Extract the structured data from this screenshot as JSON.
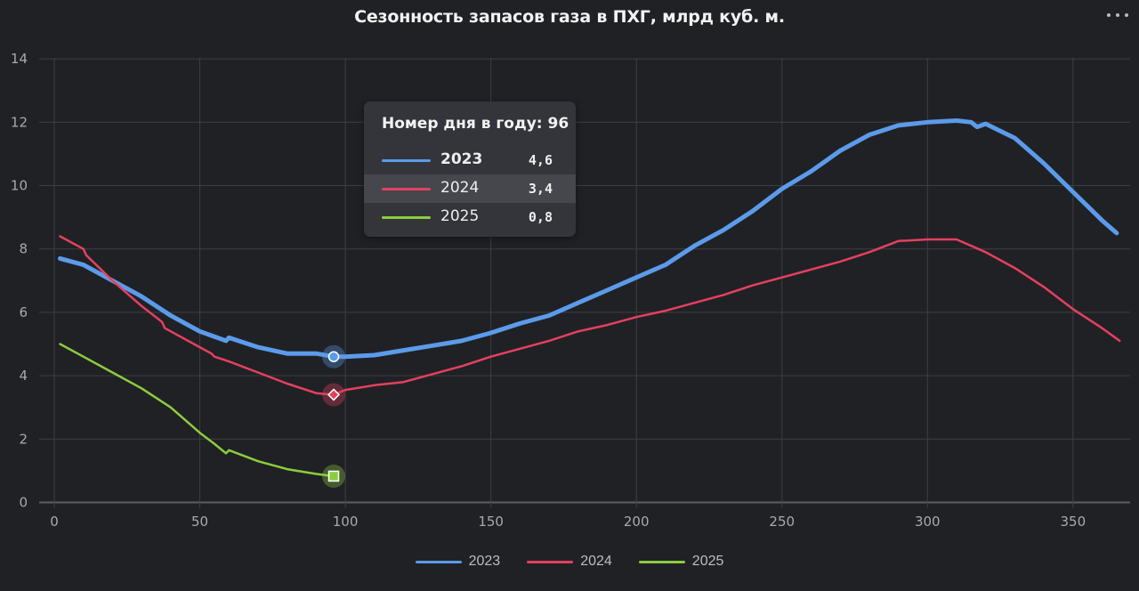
{
  "header": {
    "title": "Сезонность запасов газа в ПХГ, млрд куб. м.",
    "menu_icon": "more-horizontal-icon"
  },
  "tooltip": {
    "heading": "Номер дня в году: 96",
    "rows": [
      {
        "name": "2023",
        "value": "4,6",
        "color": "#5b9bea",
        "bold": true
      },
      {
        "name": "2024",
        "value": "3,4",
        "color": "#e5405f",
        "bold": false
      },
      {
        "name": "2025",
        "value": "0,8",
        "color": "#8ccd3e",
        "bold": false
      }
    ]
  },
  "legend": [
    {
      "label": "2023",
      "color": "#5b9bea"
    },
    {
      "label": "2024",
      "color": "#e5405f"
    },
    {
      "label": "2025",
      "color": "#8ccd3e"
    }
  ],
  "chart_data": {
    "type": "line",
    "title": "Сезонность запасов газа в ПХГ, млрд куб. м.",
    "xlabel": "",
    "ylabel": "",
    "xlim": [
      0,
      370
    ],
    "ylim": [
      0,
      14
    ],
    "x_ticks": [
      0,
      50,
      100,
      150,
      200,
      250,
      300,
      350
    ],
    "y_ticks": [
      0,
      2,
      4,
      6,
      8,
      10,
      12,
      14
    ],
    "grid": true,
    "legend_position": "bottom",
    "hover_day": 96,
    "series": [
      {
        "name": "2023",
        "color": "#5b9bea",
        "width": 5,
        "x": [
          2,
          10,
          20,
          30,
          40,
          50,
          59,
          60,
          70,
          80,
          90,
          96,
          100,
          110,
          120,
          130,
          140,
          150,
          160,
          170,
          180,
          190,
          200,
          210,
          220,
          230,
          240,
          250,
          260,
          270,
          280,
          290,
          300,
          310,
          315,
          317,
          320,
          330,
          340,
          350,
          360,
          365
        ],
        "y": [
          7.7,
          7.5,
          7.0,
          6.5,
          5.9,
          5.4,
          5.1,
          5.2,
          4.9,
          4.7,
          4.7,
          4.6,
          4.6,
          4.65,
          4.8,
          4.95,
          5.1,
          5.35,
          5.65,
          5.9,
          6.3,
          6.7,
          7.1,
          7.5,
          8.1,
          8.6,
          9.2,
          9.9,
          10.45,
          11.1,
          11.6,
          11.9,
          12.0,
          12.05,
          12.0,
          11.85,
          11.95,
          11.5,
          10.7,
          9.8,
          8.9,
          8.5
        ]
      },
      {
        "name": "2024",
        "color": "#e5405f",
        "width": 2.5,
        "x": [
          2,
          10,
          11,
          20,
          30,
          37,
          38,
          50,
          54,
          55,
          60,
          70,
          80,
          90,
          96,
          100,
          110,
          120,
          130,
          140,
          150,
          160,
          170,
          180,
          190,
          200,
          210,
          220,
          230,
          240,
          250,
          260,
          270,
          280,
          290,
          300,
          310,
          320,
          330,
          340,
          350,
          360,
          366
        ],
        "y": [
          8.4,
          8.0,
          7.8,
          7.0,
          6.2,
          5.7,
          5.5,
          4.9,
          4.7,
          4.6,
          4.45,
          4.1,
          3.75,
          3.45,
          3.4,
          3.55,
          3.7,
          3.8,
          4.05,
          4.3,
          4.6,
          4.85,
          5.1,
          5.4,
          5.6,
          5.85,
          6.05,
          6.3,
          6.55,
          6.85,
          7.1,
          7.35,
          7.6,
          7.9,
          8.25,
          8.3,
          8.3,
          7.9,
          7.4,
          6.8,
          6.1,
          5.5,
          5.1
        ]
      },
      {
        "name": "2025",
        "color": "#8ccd3e",
        "width": 2.5,
        "x": [
          2,
          10,
          20,
          30,
          40,
          45,
          50,
          55,
          59,
          60,
          70,
          80,
          90,
          96
        ],
        "y": [
          5.0,
          4.6,
          4.1,
          3.6,
          3.0,
          2.6,
          2.2,
          1.85,
          1.55,
          1.65,
          1.3,
          1.05,
          0.9,
          0.83
        ]
      }
    ]
  }
}
